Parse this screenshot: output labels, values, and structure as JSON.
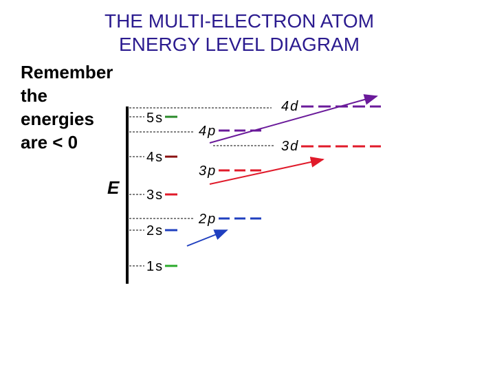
{
  "header": {
    "title_lines": [
      "THE MULTI-ELECTRON ATOM",
      "ENERGY LEVEL DIAGRAM"
    ]
  },
  "note": {
    "lines": [
      "Remember",
      "the",
      "energies",
      "are < 0"
    ]
  },
  "axis_label": "E",
  "levels": [
    {
      "label": "5s"
    },
    {
      "label": "4s"
    },
    {
      "label": "3s"
    },
    {
      "label": "2s"
    },
    {
      "label": "1s"
    },
    {
      "label": "4p"
    },
    {
      "label": "3p"
    },
    {
      "label": "2p"
    },
    {
      "label": "4d"
    },
    {
      "label": "3d"
    }
  ]
}
